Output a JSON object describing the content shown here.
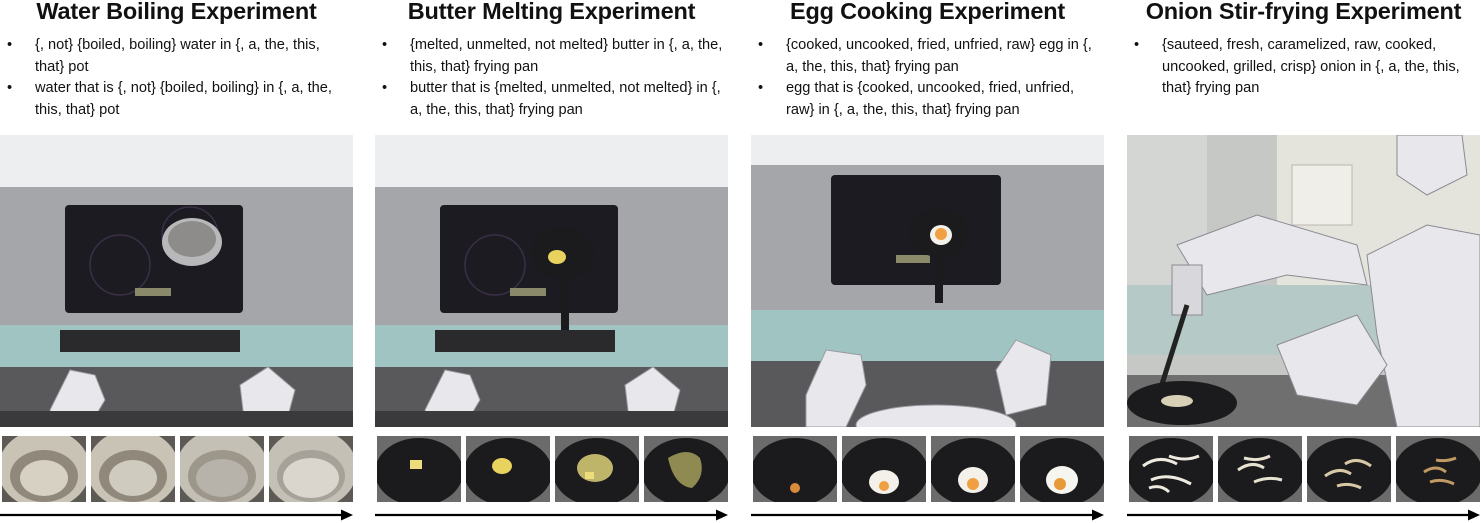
{
  "panels": [
    {
      "title": "Water Boiling Experiment",
      "bullets": [
        "{, not} {boiled, boiling} water in {, a, the, this, that} pot",
        "water that is {, not} {boiled, boiling} in {, a, the, this, that} pot"
      ],
      "photo": "robot-kitchen-stove-pot-photo",
      "sequence_images": [
        "pot-water-cold-image",
        "pot-water-warming-image",
        "pot-water-heating-image",
        "pot-water-boiling-image"
      ]
    },
    {
      "title": "Butter Melting Experiment",
      "bullets": [
        "{melted, unmelted, not melted} butter in {, a, the, this, that} frying pan",
        "butter that is {melted, unmelted, not melted} in {, a, the, this, that} frying pan"
      ],
      "photo": "robot-kitchen-stove-pan-butter-photo",
      "sequence_images": [
        "butter-solid-image",
        "butter-softening-image",
        "butter-melting-image",
        "butter-melted-image"
      ]
    },
    {
      "title": "Egg Cooking Experiment",
      "bullets": [
        "{cooked, uncooked, fried, unfried, raw} egg in {, a, the, this, that} frying pan",
        "egg that is {cooked, uncooked, fried, unfried, raw} in {, a, the, this, that} frying pan"
      ],
      "photo": "robot-kitchen-stove-pan-egg-photo",
      "sequence_images": [
        "egg-raw-image",
        "egg-cooking-image",
        "egg-frying-image",
        "egg-fried-image"
      ]
    },
    {
      "title": "Onion Stir-frying Experiment",
      "bullets": [
        "{sauteed, fresh, caramelized, raw, cooked, uncooked, grilled, crisp} onion in {, a, the, this, that} frying pan"
      ],
      "photo": "pr2-robot-stir-frying-onion-photo",
      "sequence_images": [
        "onion-raw-image",
        "onion-sauteing-image",
        "onion-cooked-image",
        "onion-caramelized-image"
      ]
    }
  ],
  "colors": {
    "text": "#111111",
    "cabinet": "#9fc4c1",
    "stove_steel": "#a3a5a8",
    "induction_top": "#1c1b22",
    "robot": "#e8e8ec",
    "pan": "#1b1b1d",
    "butter": "#e9d35f",
    "yolk": "#f0a040",
    "onion": "#e7e1cf"
  }
}
